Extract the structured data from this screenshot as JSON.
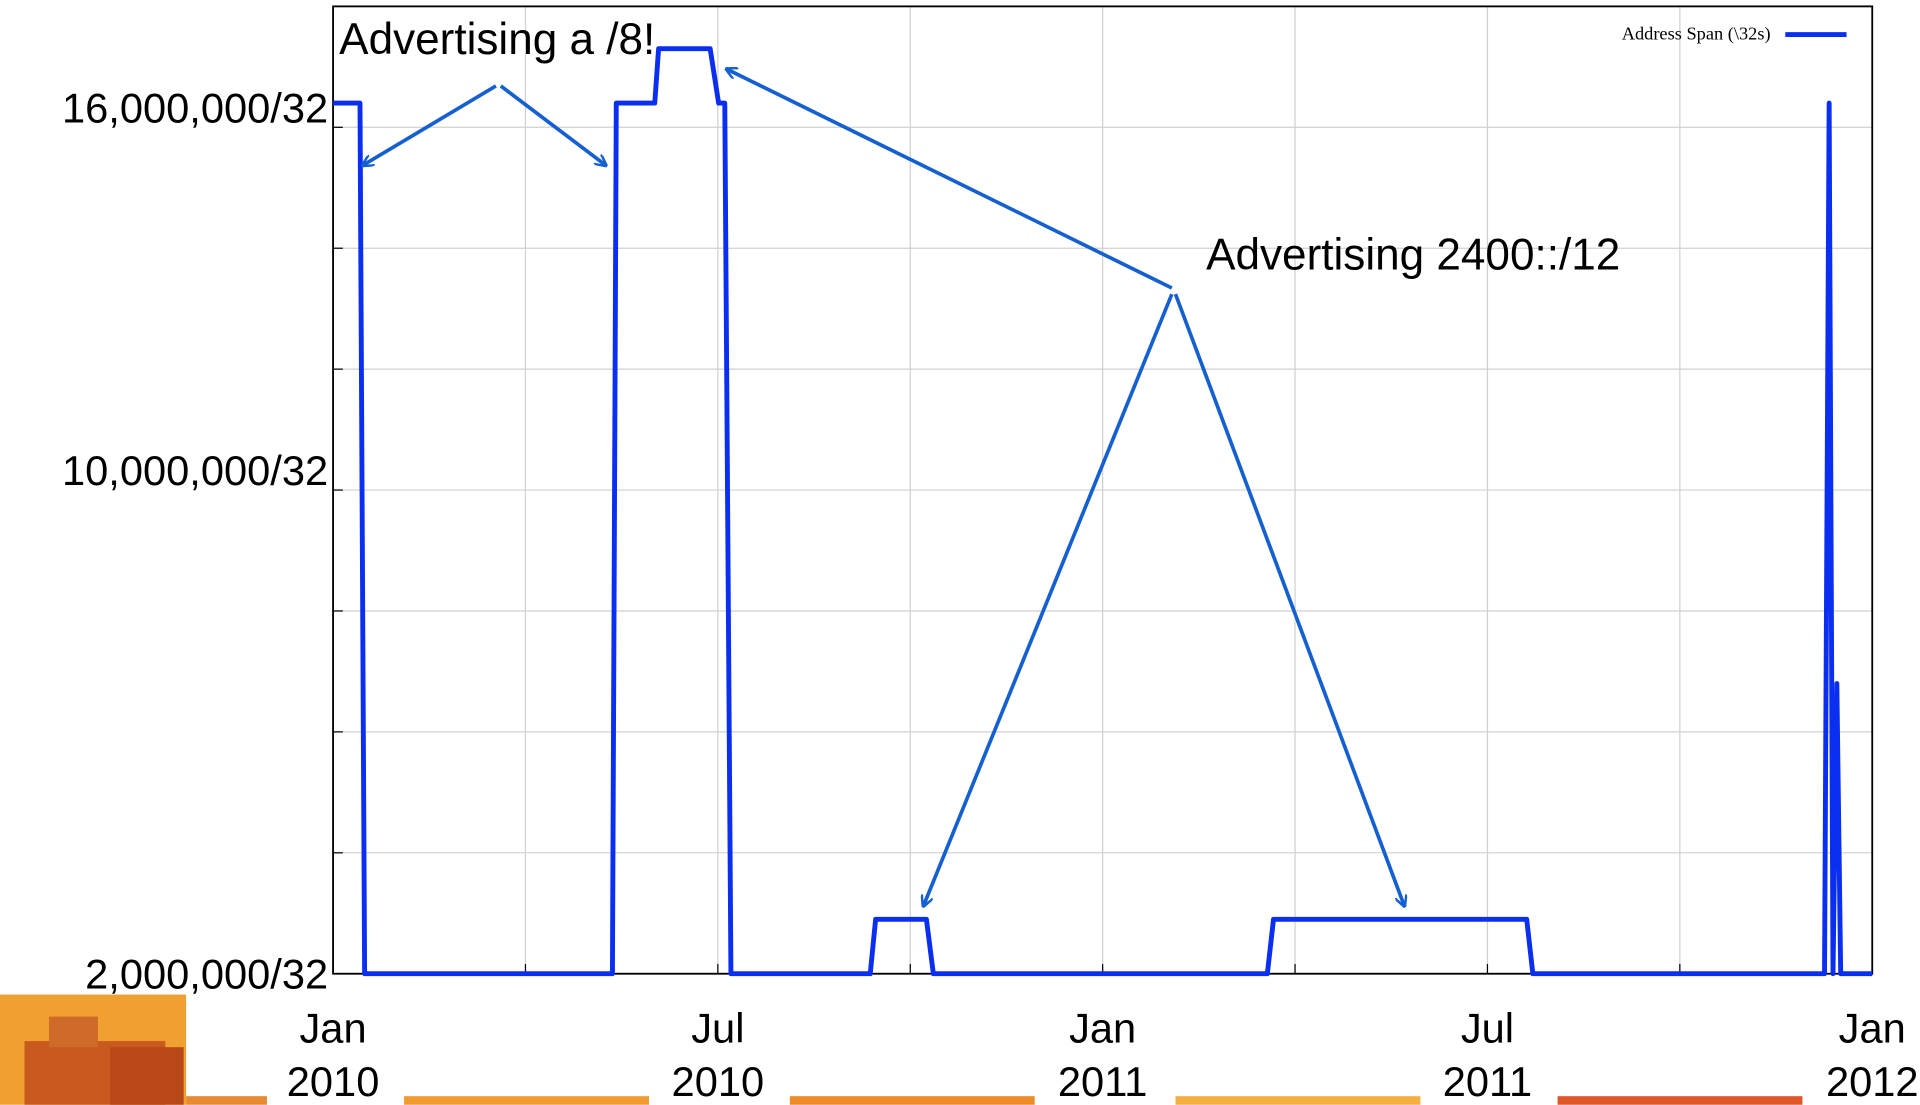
{
  "chart_data": {
    "type": "line",
    "annotations": [
      "Advertising a /8!",
      "Advertising 2400::/12"
    ],
    "x": [
      2010.0,
      2010.035,
      2010.041,
      2010.363,
      2010.368,
      2010.418,
      2010.423,
      2010.49,
      2010.501,
      2010.509,
      2010.517,
      2010.698,
      2010.705,
      2010.771,
      2010.78,
      2011.214,
      2011.222,
      2011.551,
      2011.559,
      2011.938,
      2011.944,
      2011.949,
      2011.954,
      2011.959,
      2012.0
    ],
    "series": [
      {
        "name": "Address Span (\\32s)",
        "color": "#0a2ff0",
        "values": [
          16400000,
          16400000,
          2000000,
          2000000,
          16400000,
          16400000,
          17300000,
          17300000,
          16400000,
          16400000,
          2000000,
          2000000,
          2900000,
          2900000,
          2000000,
          2000000,
          2900000,
          2900000,
          2000000,
          2000000,
          16400000,
          2000000,
          6800000,
          2000000,
          2000000
        ]
      }
    ],
    "xlim": [
      2010,
      2012
    ],
    "xticks": [
      {
        "value": 2010,
        "label": "Jan",
        "year": "2010"
      },
      {
        "value": 2010.5,
        "label": "Jul",
        "year": "2010"
      },
      {
        "value": 2011,
        "label": "Jan",
        "year": "2011"
      },
      {
        "value": 2011.5,
        "label": "Jul",
        "year": "2011"
      },
      {
        "value": 2012,
        "label": "Jan",
        "year": "2012"
      }
    ],
    "minor_xticks": [
      2010.25,
      2010.75,
      2011.25,
      2011.75
    ],
    "ylim": [
      2000000,
      18000000
    ],
    "yticks": [
      {
        "value": 2000000,
        "label": "2,000,000/32"
      },
      {
        "value": 10000000,
        "label": "10,000,000/32"
      },
      {
        "value": 16000000,
        "label": "16,000,000/32"
      }
    ],
    "minor_yticks": [
      4000000,
      6000000,
      8000000,
      12000000,
      14000000
    ],
    "grid": true,
    "legend": "upper right"
  }
}
